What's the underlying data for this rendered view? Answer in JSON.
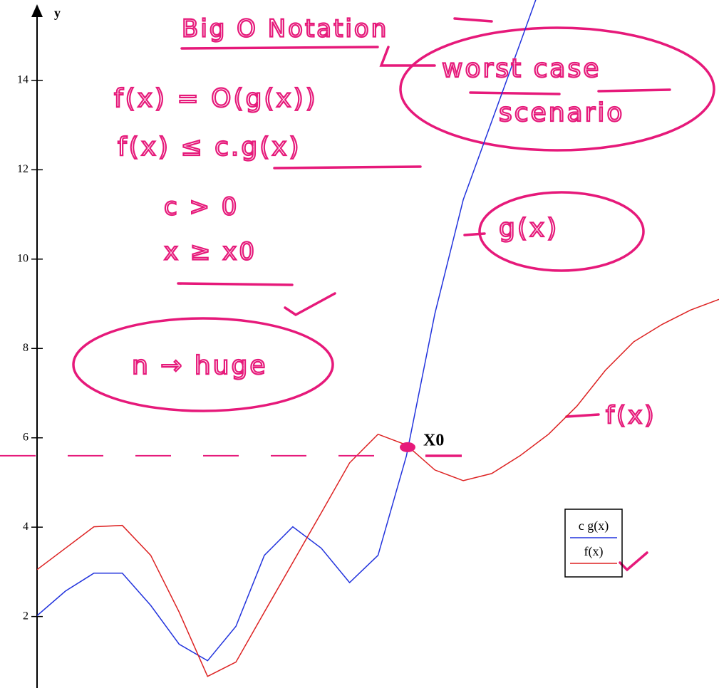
{
  "chart_data": {
    "type": "line",
    "y_label": "y",
    "categories": [
      null,
      null,
      null,
      null,
      null,
      null,
      null,
      null,
      null,
      null,
      null,
      null,
      null,
      null,
      null,
      null,
      null,
      null,
      null,
      null,
      null,
      null,
      null,
      null,
      null
    ],
    "series": [
      {
        "name": "c g(x)",
        "color": "#2233dd",
        "values": [
          2.02,
          2.57,
          2.97,
          2.97,
          2.25,
          1.38,
          1.01,
          1.78,
          3.37,
          4.01,
          3.53,
          2.76,
          3.37,
          5.6,
          8.78,
          11.33,
          13.08,
          14.83,
          16.6,
          null,
          null,
          null,
          null,
          null,
          null
        ]
      },
      {
        "name": "f(x)",
        "color": "#dd2222",
        "values": [
          3.05,
          3.53,
          4.01,
          4.04,
          3.37,
          2.1,
          0.66,
          0.98,
          2.1,
          3.21,
          4.32,
          5.44,
          6.08,
          5.84,
          5.28,
          5.04,
          5.2,
          5.6,
          6.08,
          6.71,
          7.51,
          8.15,
          8.54,
          8.86,
          9.1
        ]
      }
    ],
    "ylim": [
      0.4,
      15.8
    ],
    "yticks": [
      2,
      4,
      6,
      8,
      10,
      12,
      14
    ],
    "legend": "right",
    "x0_label": "X0",
    "x0_level": 5.6,
    "x0_value": 5.79,
    "annotations": [
      "Big O Notation",
      "worst case",
      "scenario",
      "f(x) = O(g(x))",
      "f(x) ≤ c.g(x)",
      "c > 0",
      "x ≥ x0",
      "n → huge",
      "g(x)",
      "f(x)"
    ]
  }
}
